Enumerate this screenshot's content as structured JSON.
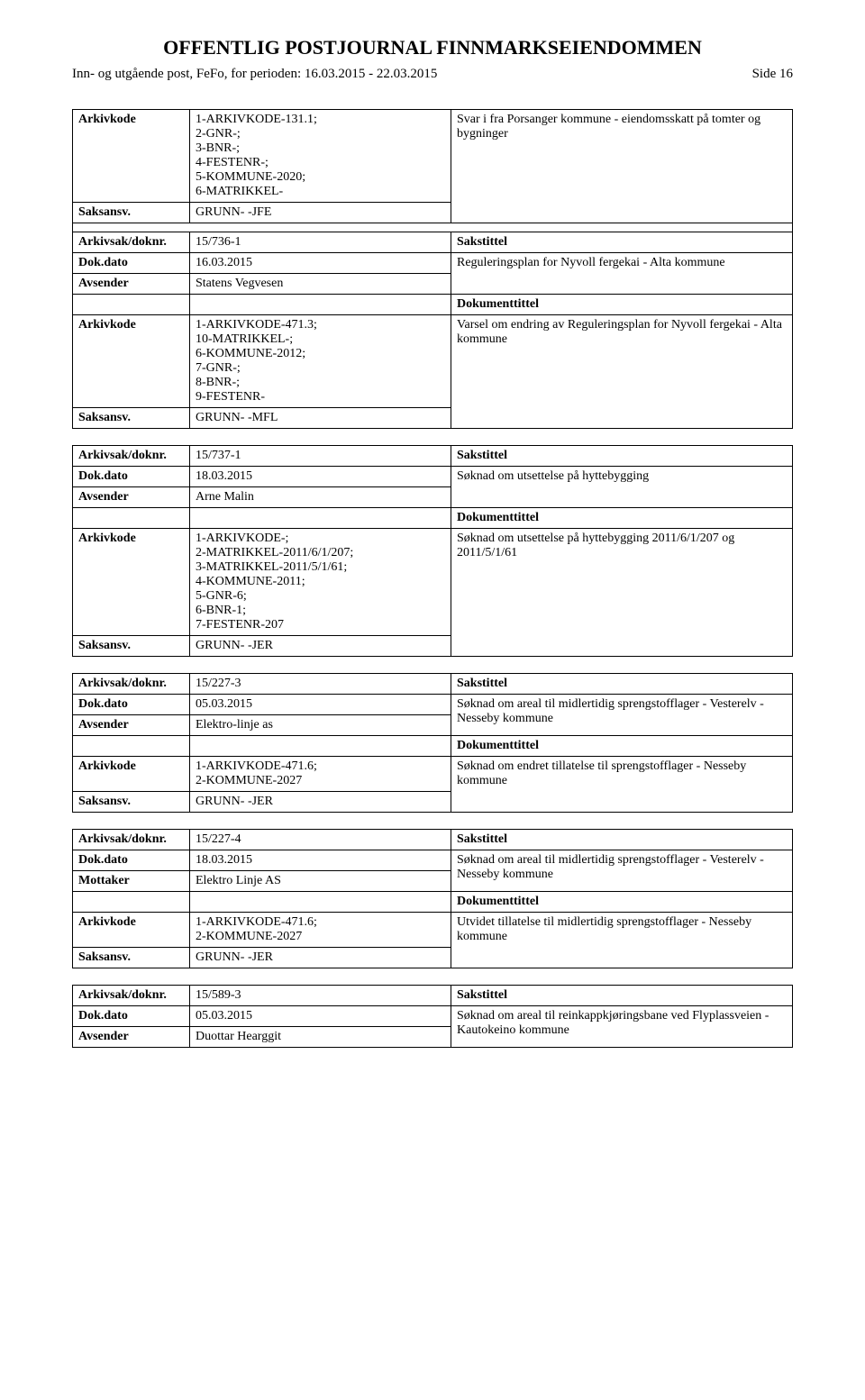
{
  "header": {
    "title": "OFFENTLIG POSTJOURNAL FINNMARKSEIENDOMMEN",
    "subtitle": "Inn- og utgående post, FeFo, for perioden: 16.03.2015 - 22.03.2015",
    "page": "Side 16"
  },
  "labels": {
    "arkivkode": "Arkivkode",
    "saksansv": "Saksansv.",
    "arkivsak": "Arkivsak/doknr.",
    "dokdato": "Dok.dato",
    "avsender": "Avsender",
    "mottaker": "Mottaker",
    "sakstittel": "Sakstittel",
    "dokumenttittel": "Dokumenttittel"
  },
  "records": [
    {
      "pre_rows": [
        {
          "label": "Arkivkode",
          "val": "1-ARKIVKODE-131.1;\n2-GNR-;\n3-BNR-;\n4-FESTENR-;\n5-KOMMUNE-2020;\n6-MATRIKKEL-",
          "right": "Svar i fra Porsanger kommune - eiendomsskatt på tomter og bygninger"
        },
        {
          "label": "Saksansv.",
          "val": "GRUNN- -JFE",
          "right": ""
        }
      ],
      "arkivsak": "15/736-1",
      "sakstittel_label": "Sakstittel",
      "dokdato": "16.03.2015",
      "party_label": "Avsender",
      "party": "Statens Vegvesen",
      "sakstittel": "Reguleringsplan for Nyvoll fergekai - Alta kommune",
      "doktittel_label": "Dokumenttittel",
      "arkivkode": "1-ARKIVKODE-471.3;\n10-MATRIKKEL-;\n6-KOMMUNE-2012;\n7-GNR-;\n8-BNR-;\n9-FESTENR-",
      "doktittel": "Varsel om endring av Reguleringsplan for Nyvoll fergekai - Alta kommune",
      "saksansv": "GRUNN- -MFL"
    },
    {
      "arkivsak": "15/737-1",
      "sakstittel_label": "Sakstittel",
      "dokdato": "18.03.2015",
      "party_label": "Avsender",
      "party": "Arne Malin",
      "sakstittel": "Søknad om utsettelse på hyttebygging",
      "doktittel_label": "Dokumenttittel",
      "arkivkode": "1-ARKIVKODE-;\n2-MATRIKKEL-2011/6/1/207;\n3-MATRIKKEL-2011/5/1/61;\n4-KOMMUNE-2011;\n5-GNR-6;\n6-BNR-1;\n7-FESTENR-207",
      "doktittel": "Søknad om utsettelse på hyttebygging 2011/6/1/207 og 2011/5/1/61",
      "saksansv": "GRUNN- -JER"
    },
    {
      "arkivsak": "15/227-3",
      "sakstittel_label": "Sakstittel",
      "dokdato": "05.03.2015",
      "party_label": "Avsender",
      "party": "Elektro-linje as",
      "sakstittel": "Søknad om areal til midlertidig sprengstofflager - Vesterelv - Nesseby kommune",
      "doktittel_label": "Dokumenttittel",
      "arkivkode": "1-ARKIVKODE-471.6;\n2-KOMMUNE-2027",
      "doktittel": "Søknad om endret tillatelse til sprengstofflager - Nesseby kommune",
      "saksansv": "GRUNN- -JER"
    },
    {
      "arkivsak": "15/227-4",
      "sakstittel_label": "Sakstittel",
      "dokdato": "18.03.2015",
      "party_label": "Mottaker",
      "party": "Elektro Linje AS",
      "sakstittel": "Søknad om areal til midlertidig sprengstofflager - Vesterelv - Nesseby kommune",
      "doktittel_label": "Dokumenttittel",
      "arkivkode": "1-ARKIVKODE-471.6;\n2-KOMMUNE-2027",
      "doktittel": "Utvidet tillatelse til midlertidig sprengstofflager - Nesseby kommune",
      "saksansv": "GRUNN- -JER"
    },
    {
      "arkivsak": "15/589-3",
      "sakstittel_label": "Sakstittel",
      "dokdato": "05.03.2015",
      "party_label": "Avsender",
      "party": "Duottar Hearggit",
      "sakstittel": "Søknad om areal til reinkappkjøringsbane ved Flyplassveien - Kautokeino kommune",
      "truncated": true
    }
  ]
}
